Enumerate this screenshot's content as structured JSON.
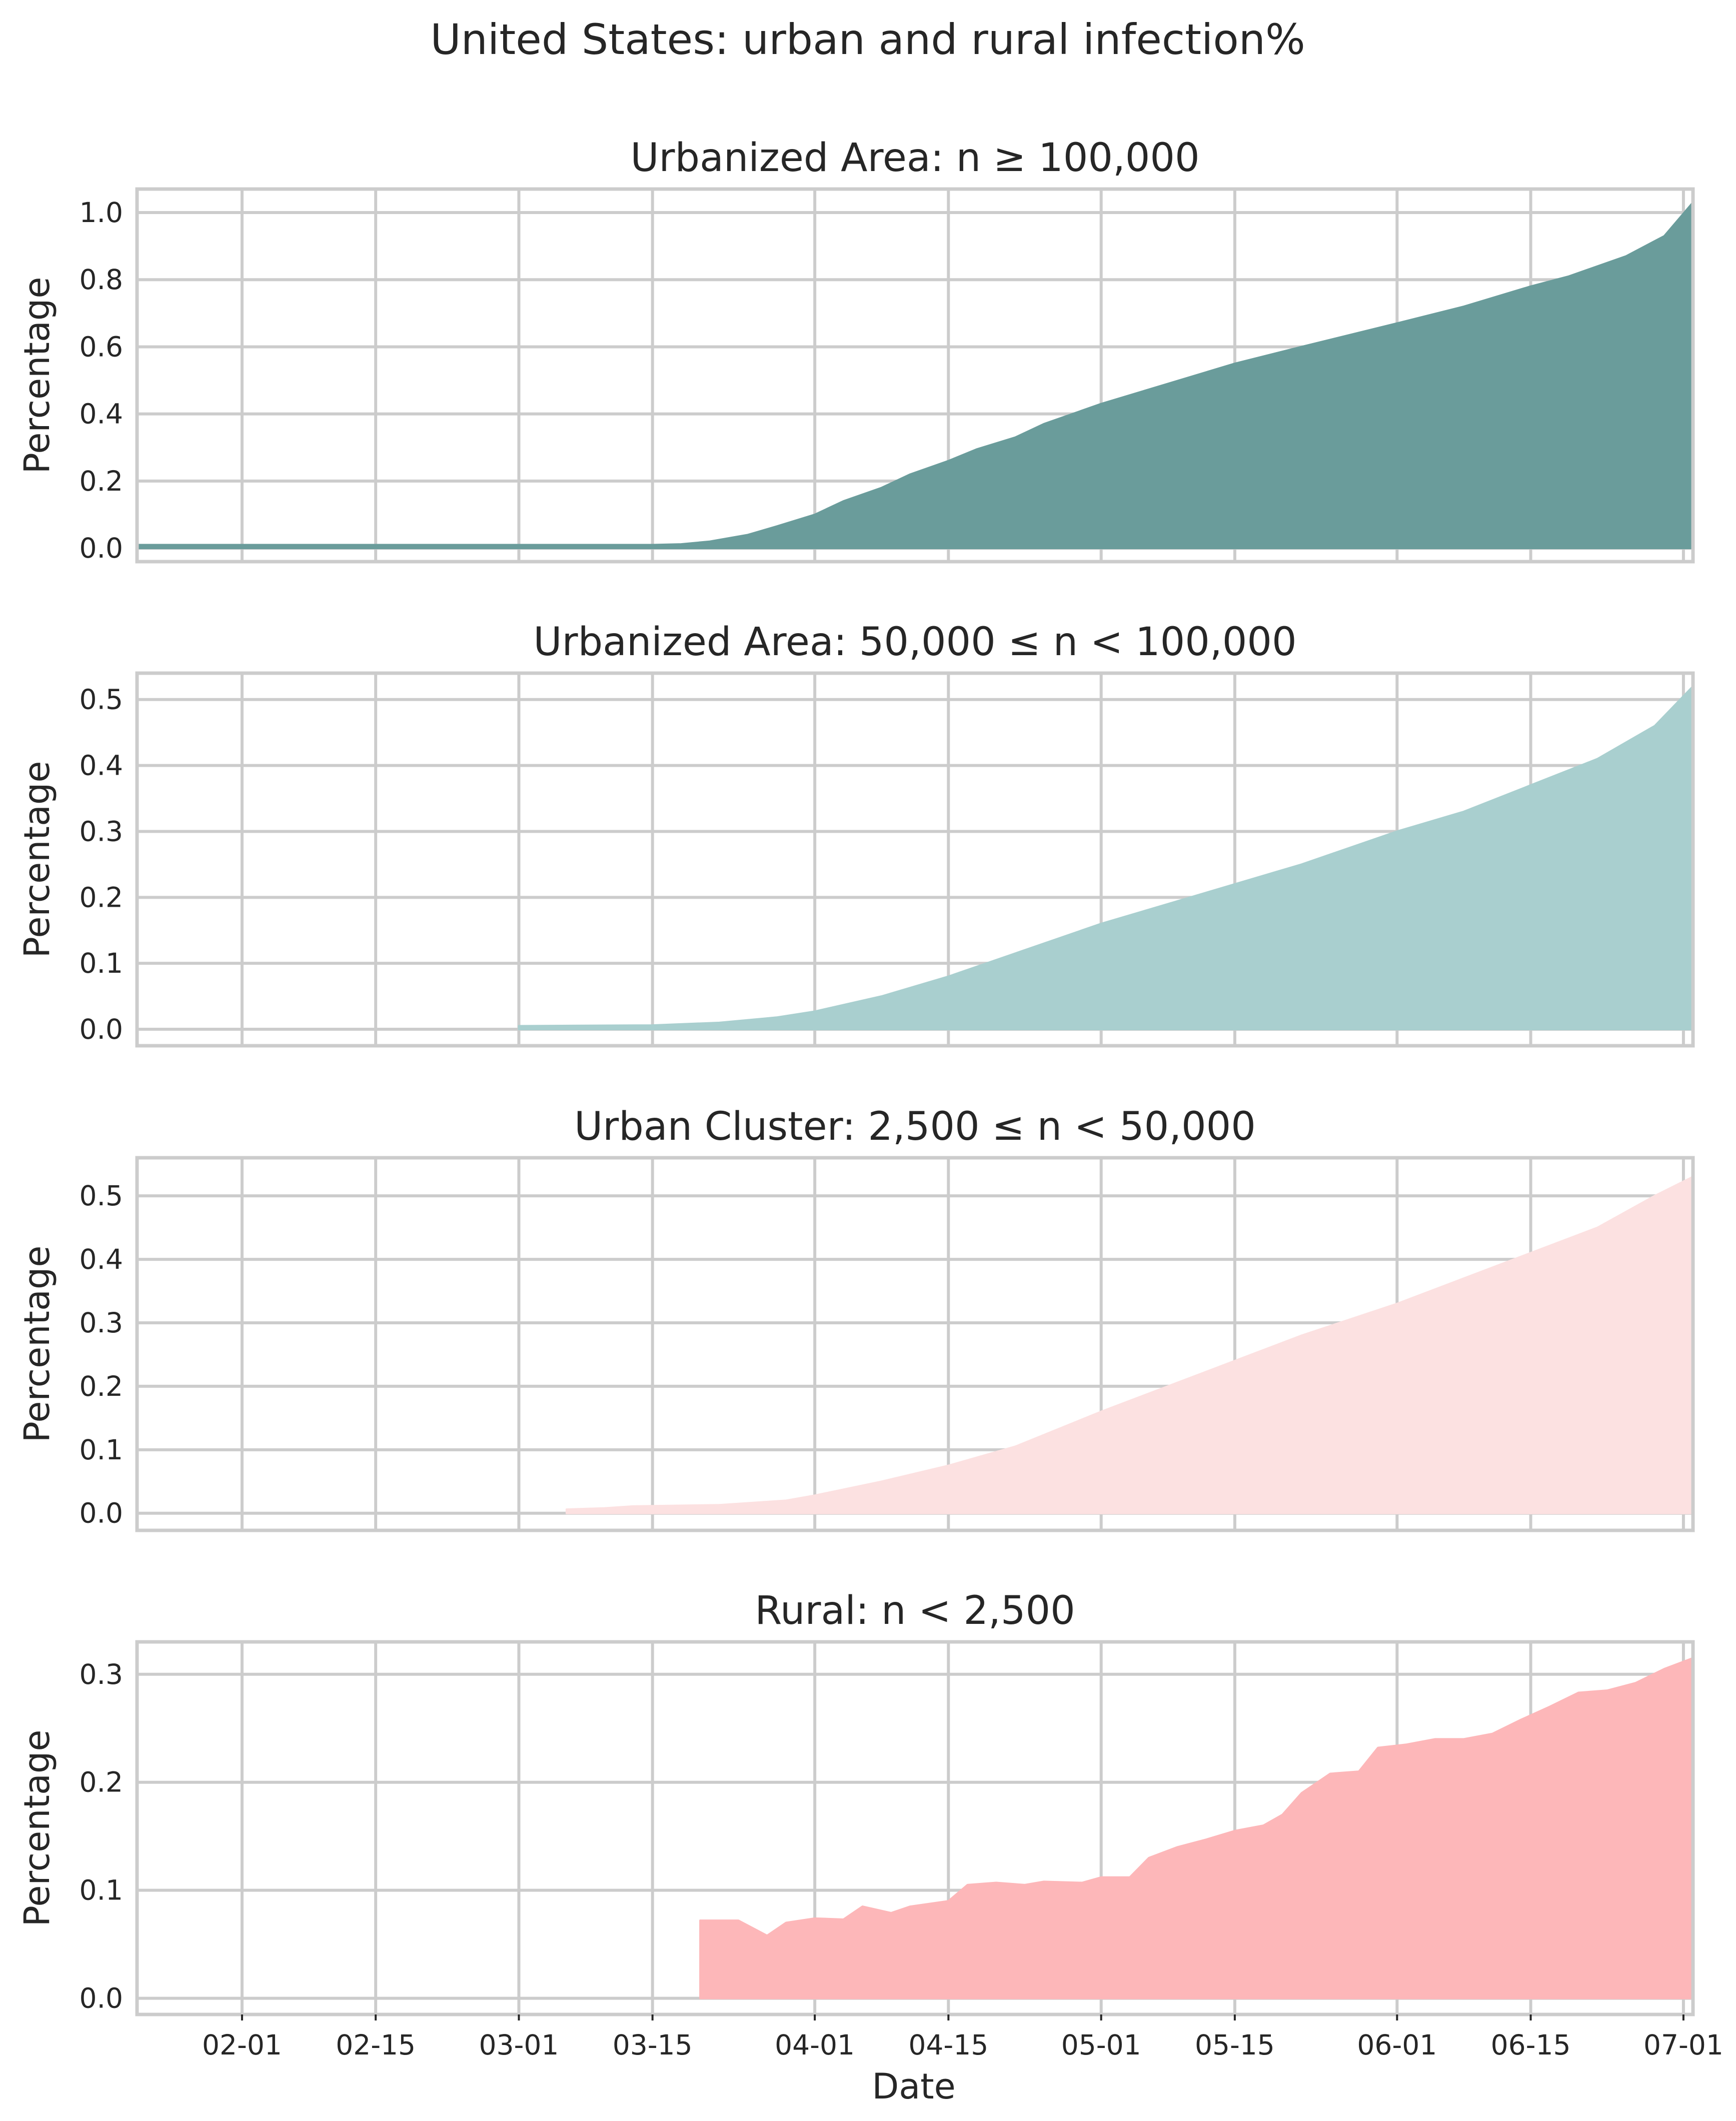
{
  "figure": {
    "title": "United States: urban and rural infection%",
    "xlabel": "Date"
  },
  "chart_data": [
    {
      "type": "area",
      "title": "Urbanized Area: n ≥ 100,000",
      "ylabel": "Percentage",
      "color": "#6a9c9b",
      "xlim": [
        "2020-01-21",
        "2020-07-02"
      ],
      "ylim": [
        -0.04,
        1.07
      ],
      "yticks": [
        0.0,
        0.2,
        0.4,
        0.6,
        0.8,
        1.0
      ],
      "yticklabels": [
        "0.0",
        "0.2",
        "0.4",
        "0.6",
        "0.8",
        "1.0"
      ],
      "grid": true,
      "points": [
        [
          "2020-01-21",
          0.01
        ],
        [
          "2020-03-15",
          0.01
        ],
        [
          "2020-03-18",
          0.012
        ],
        [
          "2020-03-21",
          0.02
        ],
        [
          "2020-03-25",
          0.04
        ],
        [
          "2020-03-28",
          0.065
        ],
        [
          "2020-04-01",
          0.1
        ],
        [
          "2020-04-04",
          0.14
        ],
        [
          "2020-04-08",
          0.18
        ],
        [
          "2020-04-11",
          0.22
        ],
        [
          "2020-04-15",
          0.26
        ],
        [
          "2020-04-18",
          0.295
        ],
        [
          "2020-04-22",
          0.33
        ],
        [
          "2020-04-25",
          0.37
        ],
        [
          "2020-05-01",
          0.43
        ],
        [
          "2020-05-08",
          0.49
        ],
        [
          "2020-05-15",
          0.55
        ],
        [
          "2020-05-22",
          0.6
        ],
        [
          "2020-06-01",
          0.67
        ],
        [
          "2020-06-08",
          0.72
        ],
        [
          "2020-06-15",
          0.78
        ],
        [
          "2020-06-19",
          0.81
        ],
        [
          "2020-06-25",
          0.87
        ],
        [
          "2020-06-29",
          0.93
        ],
        [
          "2020-07-02",
          1.03
        ]
      ]
    },
    {
      "type": "area",
      "title": "Urbanized Area: 50,000 ≤ n < 100,000",
      "ylabel": "Percentage",
      "color": "#a9cfcf",
      "xlim": [
        "2020-01-21",
        "2020-07-02"
      ],
      "ylim": [
        -0.025,
        0.54
      ],
      "yticks": [
        0.0,
        0.1,
        0.2,
        0.3,
        0.4,
        0.5
      ],
      "yticklabels": [
        "0.0",
        "0.1",
        "0.2",
        "0.3",
        "0.4",
        "0.5"
      ],
      "grid": true,
      "points": [
        [
          "2020-03-01",
          0.005
        ],
        [
          "2020-03-15",
          0.006
        ],
        [
          "2020-03-22",
          0.01
        ],
        [
          "2020-03-28",
          0.018
        ],
        [
          "2020-04-01",
          0.027
        ],
        [
          "2020-04-08",
          0.05
        ],
        [
          "2020-04-15",
          0.08
        ],
        [
          "2020-04-22",
          0.115
        ],
        [
          "2020-05-01",
          0.16
        ],
        [
          "2020-05-08",
          0.19
        ],
        [
          "2020-05-15",
          0.22
        ],
        [
          "2020-05-22",
          0.25
        ],
        [
          "2020-06-01",
          0.3
        ],
        [
          "2020-06-08",
          0.33
        ],
        [
          "2020-06-15",
          0.37
        ],
        [
          "2020-06-22",
          0.41
        ],
        [
          "2020-06-28",
          0.46
        ],
        [
          "2020-07-02",
          0.52
        ]
      ]
    },
    {
      "type": "area",
      "title": "Urban Cluster: 2,500 ≤ n < 50,000",
      "ylabel": "Percentage",
      "color": "#fce1e1",
      "xlim": [
        "2020-01-21",
        "2020-07-02"
      ],
      "ylim": [
        -0.027,
        0.56
      ],
      "yticks": [
        0.0,
        0.1,
        0.2,
        0.3,
        0.4,
        0.5
      ],
      "yticklabels": [
        "0.0",
        "0.1",
        "0.2",
        "0.3",
        "0.4",
        "0.5"
      ],
      "grid": true,
      "points": [
        [
          "2020-03-06",
          0.006
        ],
        [
          "2020-03-10",
          0.008
        ],
        [
          "2020-03-13",
          0.011
        ],
        [
          "2020-03-22",
          0.013
        ],
        [
          "2020-03-29",
          0.02
        ],
        [
          "2020-04-01",
          0.028
        ],
        [
          "2020-04-08",
          0.05
        ],
        [
          "2020-04-15",
          0.075
        ],
        [
          "2020-04-22",
          0.105
        ],
        [
          "2020-05-01",
          0.16
        ],
        [
          "2020-05-08",
          0.2
        ],
        [
          "2020-05-15",
          0.24
        ],
        [
          "2020-05-22",
          0.28
        ],
        [
          "2020-06-01",
          0.33
        ],
        [
          "2020-06-08",
          0.37
        ],
        [
          "2020-06-15",
          0.41
        ],
        [
          "2020-06-22",
          0.45
        ],
        [
          "2020-06-28",
          0.5
        ],
        [
          "2020-07-02",
          0.53
        ]
      ]
    },
    {
      "type": "area",
      "title": "Rural: n < 2,500",
      "ylabel": "Percentage",
      "color": "#fdb7b9",
      "xlim": [
        "2020-01-21",
        "2020-07-02"
      ],
      "ylim": [
        -0.015,
        0.33
      ],
      "yticks": [
        0.0,
        0.1,
        0.2,
        0.3
      ],
      "yticklabels": [
        "0.0",
        "0.1",
        "0.2",
        "0.3"
      ],
      "grid": true,
      "points": [
        [
          "2020-03-20",
          0.072
        ],
        [
          "2020-03-24",
          0.072
        ],
        [
          "2020-03-27",
          0.058
        ],
        [
          "2020-03-29",
          0.07
        ],
        [
          "2020-04-01",
          0.074
        ],
        [
          "2020-04-04",
          0.073
        ],
        [
          "2020-04-06",
          0.085
        ],
        [
          "2020-04-09",
          0.079
        ],
        [
          "2020-04-11",
          0.085
        ],
        [
          "2020-04-15",
          0.09
        ],
        [
          "2020-04-17",
          0.105
        ],
        [
          "2020-04-20",
          0.107
        ],
        [
          "2020-04-23",
          0.105
        ],
        [
          "2020-04-25",
          0.108
        ],
        [
          "2020-04-29",
          0.107
        ],
        [
          "2020-05-01",
          0.112
        ],
        [
          "2020-05-04",
          0.112
        ],
        [
          "2020-05-06",
          0.13
        ],
        [
          "2020-05-09",
          0.14
        ],
        [
          "2020-05-12",
          0.147
        ],
        [
          "2020-05-15",
          0.155
        ],
        [
          "2020-05-18",
          0.16
        ],
        [
          "2020-05-20",
          0.17
        ],
        [
          "2020-05-22",
          0.19
        ],
        [
          "2020-05-25",
          0.208
        ],
        [
          "2020-05-28",
          0.21
        ],
        [
          "2020-05-30",
          0.232
        ],
        [
          "2020-06-02",
          0.235
        ],
        [
          "2020-06-05",
          0.24
        ],
        [
          "2020-06-08",
          0.24
        ],
        [
          "2020-06-11",
          0.245
        ],
        [
          "2020-06-14",
          0.258
        ],
        [
          "2020-06-17",
          0.27
        ],
        [
          "2020-06-20",
          0.283
        ],
        [
          "2020-06-23",
          0.285
        ],
        [
          "2020-06-26",
          0.292
        ],
        [
          "2020-06-29",
          0.305
        ],
        [
          "2020-07-02",
          0.315
        ]
      ]
    }
  ],
  "x_ticks": [
    {
      "date": "2020-02-01",
      "label": "02-01"
    },
    {
      "date": "2020-02-15",
      "label": "02-15"
    },
    {
      "date": "2020-03-01",
      "label": "03-01"
    },
    {
      "date": "2020-03-15",
      "label": "03-15"
    },
    {
      "date": "2020-04-01",
      "label": "04-01"
    },
    {
      "date": "2020-04-15",
      "label": "04-15"
    },
    {
      "date": "2020-05-01",
      "label": "05-01"
    },
    {
      "date": "2020-05-15",
      "label": "05-15"
    },
    {
      "date": "2020-06-01",
      "label": "06-01"
    },
    {
      "date": "2020-06-15",
      "label": "06-15"
    },
    {
      "date": "2020-07-01",
      "label": "07-01"
    }
  ]
}
